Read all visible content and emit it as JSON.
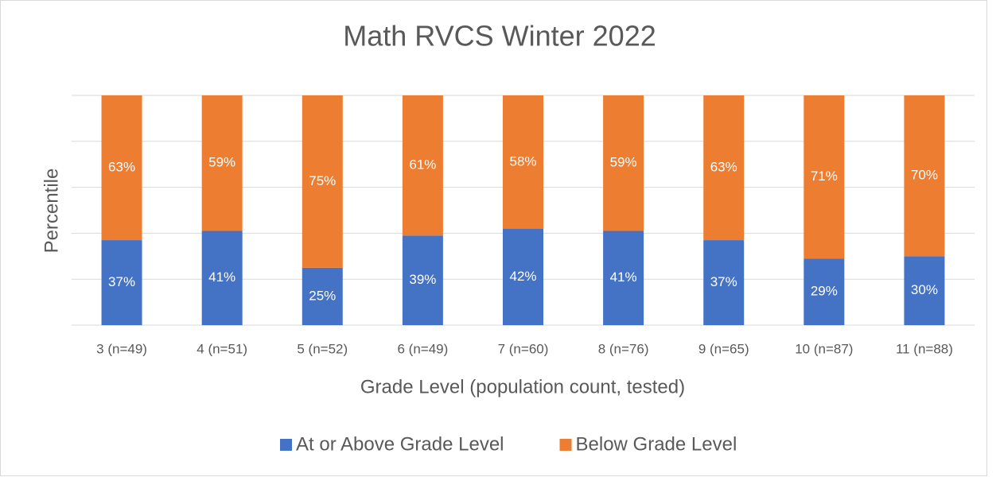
{
  "chart_data": {
    "type": "stacked_bar",
    "title": "Math RVCS Winter 2022",
    "x_label": "Grade Level (population count, tested)",
    "y_label": "Percentile",
    "categories": [
      "3 (n=49)",
      "4 (n=51)",
      "5 (n=52)",
      "6 (n=49)",
      "7 (n=60)",
      "8 (n=76)",
      "9 (n=65)",
      "10 (n=87)",
      "11 (n=88)"
    ],
    "series": [
      {
        "name": "At or Above Grade Level",
        "color": "#4472c4",
        "values": [
          37,
          41,
          25,
          39,
          42,
          41,
          37,
          29,
          30
        ],
        "value_labels": [
          "37%",
          "41%",
          "25%",
          "39%",
          "42%",
          "41%",
          "37%",
          "29%",
          "30%"
        ]
      },
      {
        "name": "Below Grade Level",
        "color": "#ed7d31",
        "values": [
          63,
          59,
          75,
          61,
          58,
          59,
          63,
          71,
          70
        ],
        "value_labels": [
          "63%",
          "59%",
          "75%",
          "61%",
          "58%",
          "59%",
          "63%",
          "71%",
          "70%"
        ]
      }
    ],
    "ylim": [
      0,
      100
    ],
    "yticks": [
      0,
      20,
      40,
      60,
      80,
      100
    ],
    "grid": true,
    "legend": "bottom"
  }
}
